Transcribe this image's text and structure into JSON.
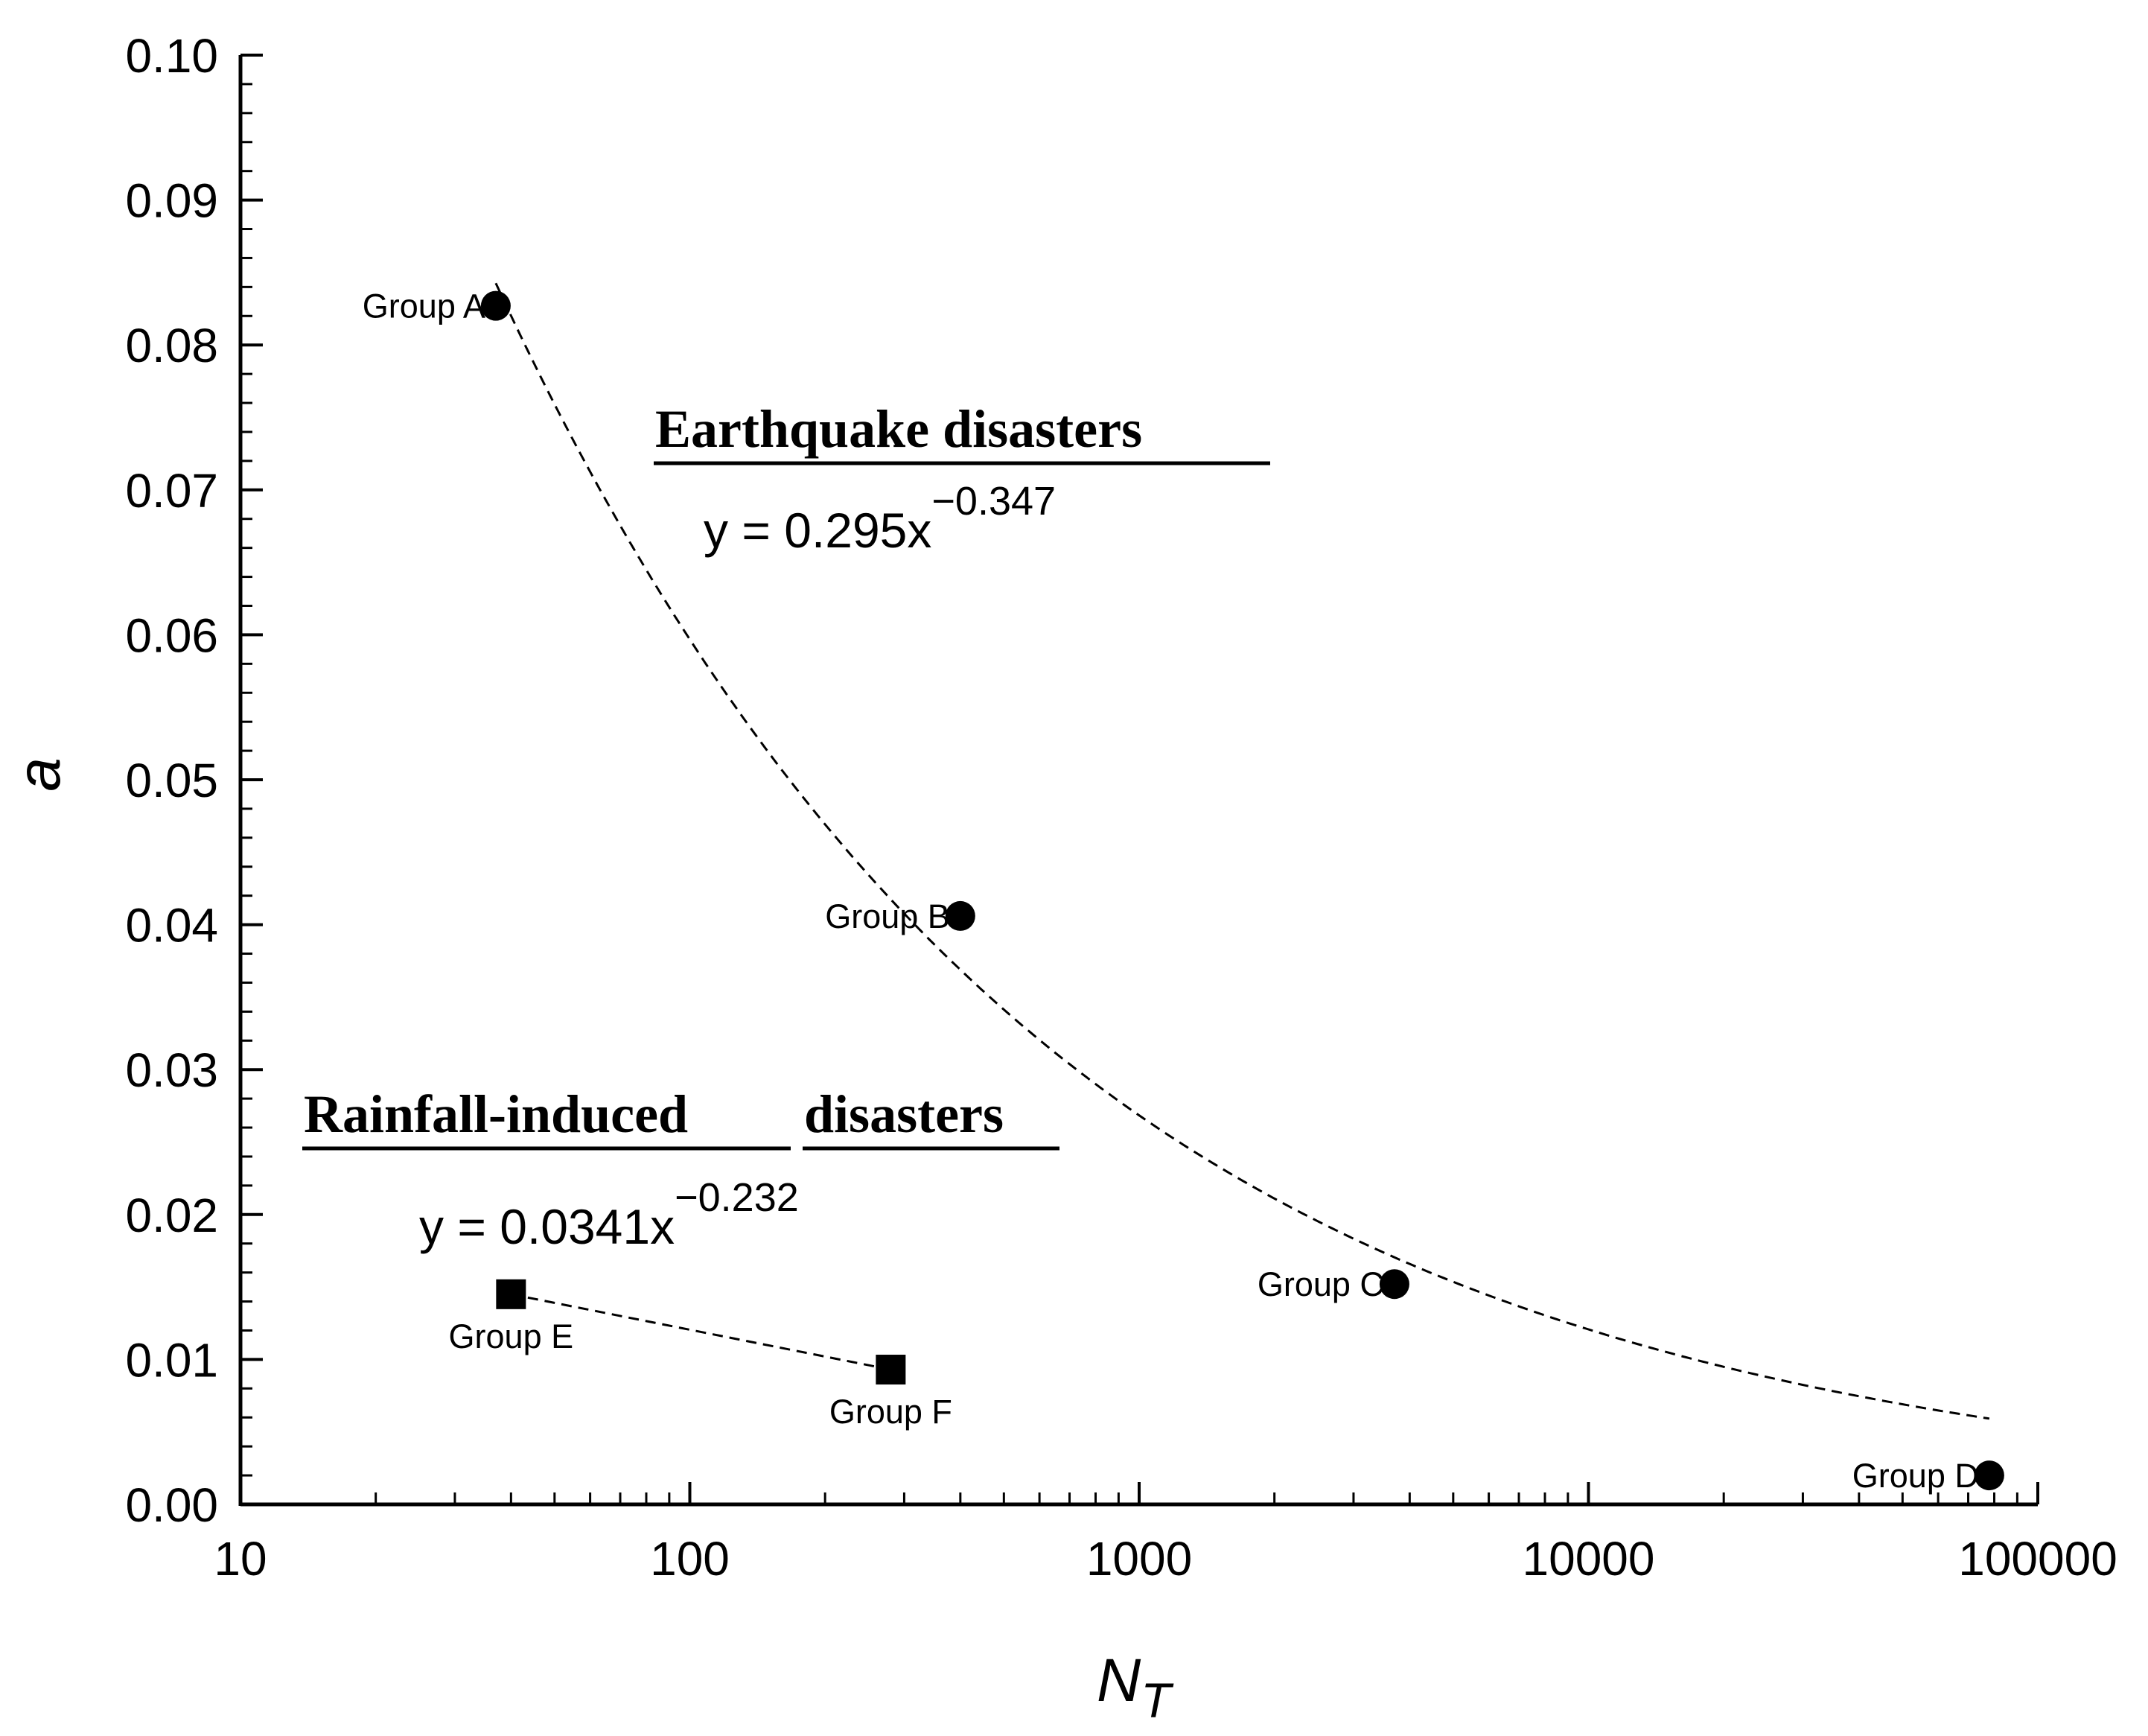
{
  "chart_data": {
    "type": "scatter",
    "title": "",
    "xlabel": "N",
    "xlabel_subscript": "T",
    "ylabel": "a",
    "xscale": "log",
    "xlim": [
      10,
      100000
    ],
    "ylim": [
      0,
      0.1
    ],
    "x_ticks": [
      "10",
      "100",
      "1000",
      "10000",
      "100000"
    ],
    "y_ticks": [
      "0.00",
      "0.01",
      "0.02",
      "0.03",
      "0.04",
      "0.05",
      "0.06",
      "0.07",
      "0.08",
      "0.09",
      "0.10"
    ],
    "grid": false,
    "series": [
      {
        "name": "Earthquake disasters",
        "marker": "circle",
        "points": [
          {
            "label": "Group A",
            "x": 37,
            "y": 0.0827
          },
          {
            "label": "Group B",
            "x": 400,
            "y": 0.0406
          },
          {
            "label": "Group C",
            "x": 3700,
            "y": 0.0152
          },
          {
            "label": "Group D",
            "x": 78000,
            "y": 0.002
          }
        ],
        "fit": {
          "a": 0.295,
          "b": -0.347,
          "x_range": [
            37,
            78000
          ]
        },
        "equation_base": "y = 0.295x",
        "equation_exp": "−0.347"
      },
      {
        "name": "Rainfall-induced disasters",
        "marker": "square",
        "points": [
          {
            "label": "Group E",
            "x": 40,
            "y": 0.0145
          },
          {
            "label": "Group F",
            "x": 280,
            "y": 0.0093
          }
        ],
        "fit_segment": [
          [
            40,
            0.0145
          ],
          [
            280,
            0.0093
          ]
        ],
        "equation_base": "y = 0.0341x",
        "equation_exp": "−0.232"
      }
    ],
    "annotations": {
      "earthquake_heading": "Earthquake disasters",
      "rainfall_heading_part1": "Rainfall-induced",
      "rainfall_heading_part2": "disasters"
    }
  }
}
